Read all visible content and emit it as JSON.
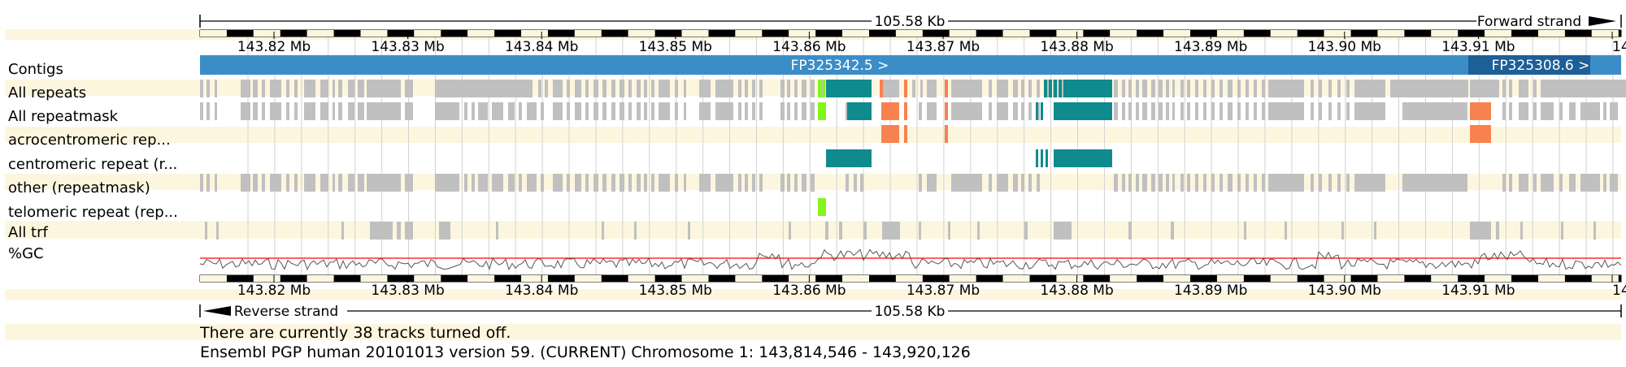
{
  "colors": {
    "band": "#fdf6de",
    "contig_primary": "#3b8dc8",
    "contig_secondary": "#1d5f97",
    "repeat_gray": "#c0c0c0",
    "repeat_teal": "#0f8b8d",
    "repeat_orange": "#f8824f",
    "repeat_green": "#84f51a",
    "gc_line": "#555555",
    "gc_ref": "#ff0000"
  },
  "ruler": {
    "top_length": "105.58 Kb",
    "forward_label": "Forward strand",
    "bottom_length": "105.58 Kb",
    "reverse_label": "Reverse strand",
    "tick_labels": [
      "143.82 Mb",
      "143.83 Mb",
      "143.84 Mb",
      "143.85 Mb",
      "143.86 Mb",
      "143.87 Mb",
      "143.88 Mb",
      "143.89 Mb",
      "143.90 Mb",
      "143.91 Mb",
      "14"
    ]
  },
  "tracks": [
    {
      "label": "Contigs"
    },
    {
      "label": "All repeats"
    },
    {
      "label": "All repeatmask"
    },
    {
      "label": "acrocentromeric rep..."
    },
    {
      "label": "centromeric repeat (r..."
    },
    {
      "label": "other (repeatmask)"
    },
    {
      "label": "telomeric repeat (rep..."
    },
    {
      "label": "All trf"
    },
    {
      "label": "%GC"
    }
  ],
  "contigs": [
    {
      "name": "FP325342.5 >",
      "color": "primary"
    },
    {
      "name": "FP325308.6 >",
      "color": "secondary"
    }
  ],
  "footer": {
    "tracks_off": "There are currently 38 tracks turned off.",
    "release": "Ensembl PGP human 20101013 version 59. (CURRENT) Chromosome 1: 143,814,546 - 143,920,126"
  }
}
